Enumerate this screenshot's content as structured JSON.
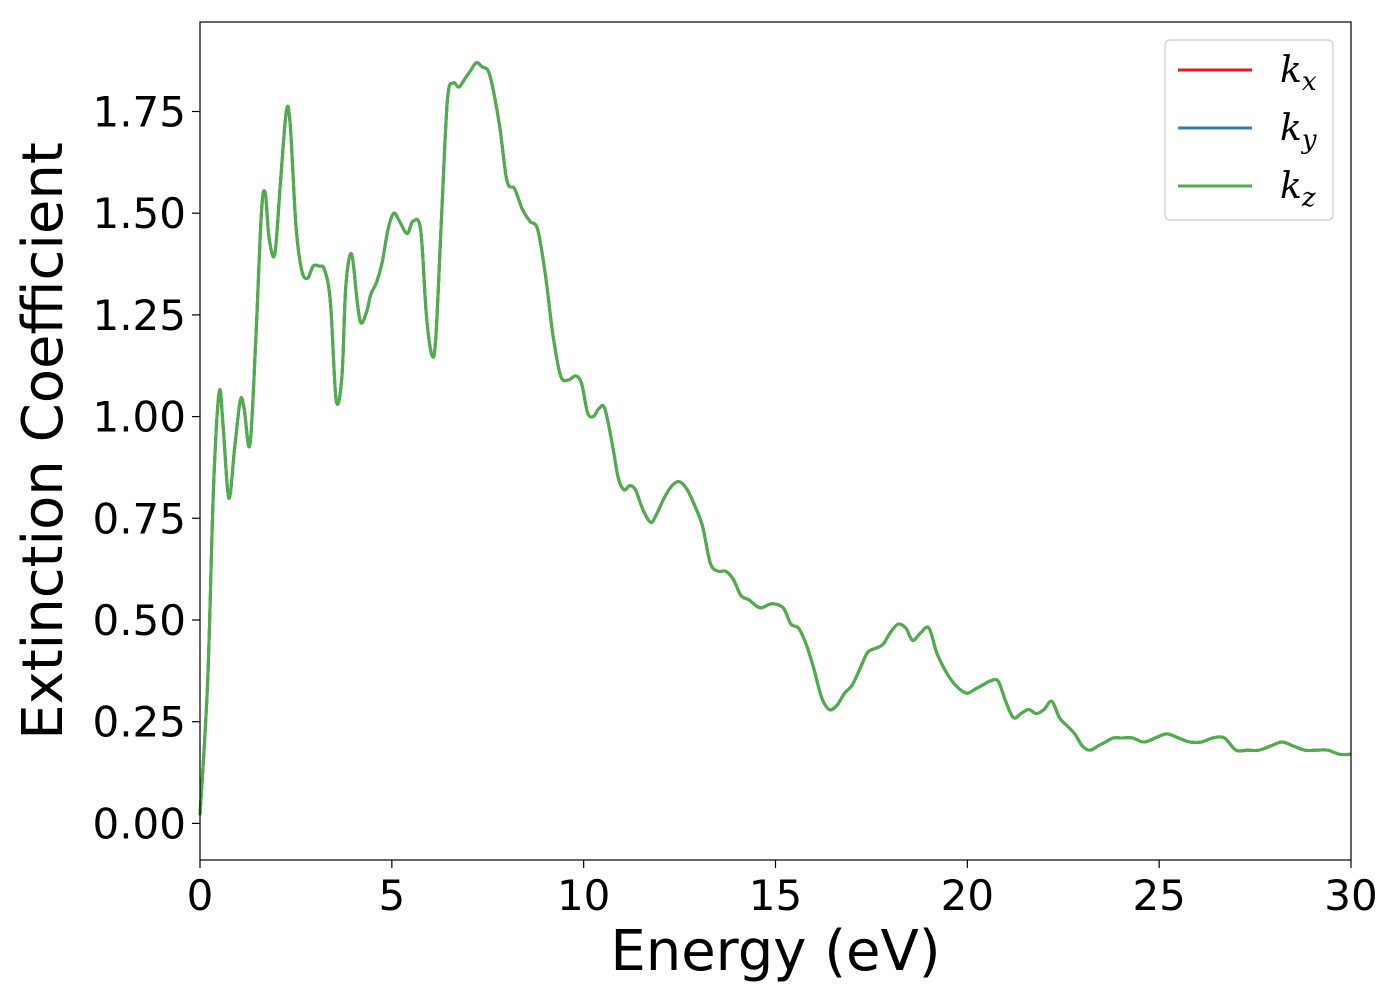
{
  "chart_data": {
    "type": "line",
    "title": "",
    "xlabel": "Energy (eV)",
    "ylabel": "Extinction Coefficient",
    "xlim": [
      0,
      30
    ],
    "ylim": [
      -0.09,
      1.97
    ],
    "xticks": [
      0,
      5,
      10,
      15,
      20,
      25,
      30
    ],
    "xtick_labels": [
      "0",
      "5",
      "10",
      "15",
      "20",
      "25",
      "30"
    ],
    "yticks": [
      0.0,
      0.25,
      0.5,
      0.75,
      1.0,
      1.25,
      1.5,
      1.75
    ],
    "ytick_labels": [
      "0.00",
      "0.25",
      "0.50",
      "0.75",
      "1.00",
      "1.25",
      "1.50",
      "1.75"
    ],
    "grid": false,
    "legend_position": "top-right",
    "x": [
      0,
      0.2,
      0.35,
      0.5,
      0.6,
      0.75,
      0.9,
      1.05,
      1.15,
      1.3,
      1.45,
      1.6,
      1.7,
      1.8,
      1.95,
      2.1,
      2.25,
      2.35,
      2.5,
      2.65,
      2.8,
      2.95,
      3.1,
      3.25,
      3.4,
      3.55,
      3.7,
      3.8,
      3.95,
      4.1,
      4.2,
      4.35,
      4.45,
      4.6,
      4.75,
      4.9,
      5.05,
      5.2,
      5.4,
      5.55,
      5.75,
      5.9,
      6.05,
      6.15,
      6.3,
      6.45,
      6.6,
      6.75,
      6.9,
      7.05,
      7.2,
      7.35,
      7.55,
      7.8,
      8.0,
      8.2,
      8.4,
      8.6,
      8.8,
      9.0,
      9.2,
      9.4,
      9.6,
      9.8,
      9.95,
      10.1,
      10.25,
      10.4,
      10.55,
      10.75,
      10.9,
      11.05,
      11.2,
      11.35,
      11.55,
      11.75,
      11.9,
      12.1,
      12.3,
      12.5,
      12.7,
      12.9,
      13.1,
      13.3,
      13.5,
      13.7,
      13.9,
      14.1,
      14.3,
      14.6,
      14.9,
      15.2,
      15.4,
      15.6,
      15.8,
      16.0,
      16.2,
      16.4,
      16.6,
      16.8,
      17.0,
      17.2,
      17.4,
      17.6,
      17.8,
      18.0,
      18.2,
      18.4,
      18.5,
      18.6,
      18.8,
      19.0,
      19.2,
      19.4,
      19.6,
      19.8,
      20.0,
      20.2,
      20.4,
      20.6,
      20.8,
      21.0,
      21.2,
      21.4,
      21.6,
      21.8,
      22.0,
      22.2,
      22.4,
      22.6,
      22.8,
      23.0,
      23.2,
      23.4,
      23.6,
      23.8,
      24.0,
      24.3,
      24.6,
      24.9,
      25.2,
      25.5,
      25.8,
      26.1,
      26.4,
      26.7,
      27.0,
      27.3,
      27.6,
      27.9,
      28.2,
      28.5,
      28.8,
      29.1,
      29.4,
      29.7,
      30.0
    ],
    "series": [
      {
        "name": "k_x",
        "label_main": "k",
        "label_sub": "x",
        "color": "#e41a1c",
        "values": [
          0.02,
          0.35,
          0.82,
          1.06,
          0.98,
          0.8,
          0.92,
          1.04,
          1.02,
          0.93,
          1.18,
          1.5,
          1.55,
          1.44,
          1.4,
          1.58,
          1.75,
          1.72,
          1.47,
          1.36,
          1.34,
          1.37,
          1.37,
          1.36,
          1.28,
          1.04,
          1.1,
          1.32,
          1.4,
          1.28,
          1.23,
          1.26,
          1.3,
          1.33,
          1.38,
          1.46,
          1.5,
          1.48,
          1.45,
          1.48,
          1.46,
          1.25,
          1.15,
          1.2,
          1.5,
          1.78,
          1.82,
          1.81,
          1.83,
          1.85,
          1.87,
          1.86,
          1.84,
          1.72,
          1.58,
          1.56,
          1.51,
          1.48,
          1.46,
          1.35,
          1.2,
          1.1,
          1.09,
          1.1,
          1.08,
          1.01,
          1.0,
          1.02,
          1.02,
          0.93,
          0.85,
          0.82,
          0.83,
          0.82,
          0.77,
          0.74,
          0.76,
          0.8,
          0.83,
          0.84,
          0.82,
          0.78,
          0.73,
          0.64,
          0.62,
          0.62,
          0.6,
          0.56,
          0.55,
          0.53,
          0.54,
          0.53,
          0.49,
          0.48,
          0.44,
          0.38,
          0.31,
          0.28,
          0.29,
          0.32,
          0.34,
          0.38,
          0.42,
          0.43,
          0.44,
          0.47,
          0.49,
          0.48,
          0.46,
          0.45,
          0.47,
          0.48,
          0.42,
          0.38,
          0.35,
          0.33,
          0.32,
          0.33,
          0.34,
          0.35,
          0.35,
          0.3,
          0.26,
          0.27,
          0.28,
          0.27,
          0.28,
          0.3,
          0.26,
          0.24,
          0.22,
          0.19,
          0.18,
          0.19,
          0.2,
          0.21,
          0.21,
          0.21,
          0.2,
          0.21,
          0.22,
          0.21,
          0.2,
          0.2,
          0.21,
          0.21,
          0.18,
          0.18,
          0.18,
          0.19,
          0.2,
          0.19,
          0.18,
          0.18,
          0.18,
          0.17,
          0.17
        ]
      },
      {
        "name": "k_y",
        "label_main": "k",
        "label_sub": "y",
        "color": "#377eb8",
        "values": [
          0.02,
          0.35,
          0.82,
          1.06,
          0.98,
          0.8,
          0.92,
          1.04,
          1.02,
          0.93,
          1.18,
          1.5,
          1.55,
          1.44,
          1.4,
          1.58,
          1.75,
          1.72,
          1.47,
          1.36,
          1.34,
          1.37,
          1.37,
          1.36,
          1.28,
          1.04,
          1.1,
          1.32,
          1.4,
          1.28,
          1.23,
          1.26,
          1.3,
          1.33,
          1.38,
          1.46,
          1.5,
          1.48,
          1.45,
          1.48,
          1.46,
          1.25,
          1.15,
          1.2,
          1.5,
          1.78,
          1.82,
          1.81,
          1.83,
          1.85,
          1.87,
          1.86,
          1.84,
          1.72,
          1.58,
          1.56,
          1.51,
          1.48,
          1.46,
          1.35,
          1.2,
          1.1,
          1.09,
          1.1,
          1.08,
          1.01,
          1.0,
          1.02,
          1.02,
          0.93,
          0.85,
          0.82,
          0.83,
          0.82,
          0.77,
          0.74,
          0.76,
          0.8,
          0.83,
          0.84,
          0.82,
          0.78,
          0.73,
          0.64,
          0.62,
          0.62,
          0.6,
          0.56,
          0.55,
          0.53,
          0.54,
          0.53,
          0.49,
          0.48,
          0.44,
          0.38,
          0.31,
          0.28,
          0.29,
          0.32,
          0.34,
          0.38,
          0.42,
          0.43,
          0.44,
          0.47,
          0.49,
          0.48,
          0.46,
          0.45,
          0.47,
          0.48,
          0.42,
          0.38,
          0.35,
          0.33,
          0.32,
          0.33,
          0.34,
          0.35,
          0.35,
          0.3,
          0.26,
          0.27,
          0.28,
          0.27,
          0.28,
          0.3,
          0.26,
          0.24,
          0.22,
          0.19,
          0.18,
          0.19,
          0.2,
          0.21,
          0.21,
          0.21,
          0.2,
          0.21,
          0.22,
          0.21,
          0.2,
          0.2,
          0.21,
          0.21,
          0.18,
          0.18,
          0.18,
          0.19,
          0.2,
          0.19,
          0.18,
          0.18,
          0.18,
          0.17,
          0.17
        ]
      },
      {
        "name": "k_z",
        "label_main": "k",
        "label_sub": "z",
        "color": "#4daf4a",
        "values": [
          0.02,
          0.35,
          0.82,
          1.06,
          0.98,
          0.8,
          0.92,
          1.04,
          1.02,
          0.93,
          1.18,
          1.5,
          1.55,
          1.44,
          1.4,
          1.58,
          1.75,
          1.72,
          1.47,
          1.36,
          1.34,
          1.37,
          1.37,
          1.36,
          1.28,
          1.04,
          1.1,
          1.32,
          1.4,
          1.28,
          1.23,
          1.26,
          1.3,
          1.33,
          1.38,
          1.46,
          1.5,
          1.48,
          1.45,
          1.48,
          1.46,
          1.25,
          1.15,
          1.2,
          1.5,
          1.78,
          1.82,
          1.81,
          1.83,
          1.85,
          1.87,
          1.86,
          1.84,
          1.72,
          1.58,
          1.56,
          1.51,
          1.48,
          1.46,
          1.35,
          1.2,
          1.1,
          1.09,
          1.1,
          1.08,
          1.01,
          1.0,
          1.02,
          1.02,
          0.93,
          0.85,
          0.82,
          0.83,
          0.82,
          0.77,
          0.74,
          0.76,
          0.8,
          0.83,
          0.84,
          0.82,
          0.78,
          0.73,
          0.64,
          0.62,
          0.62,
          0.6,
          0.56,
          0.55,
          0.53,
          0.54,
          0.53,
          0.49,
          0.48,
          0.44,
          0.38,
          0.31,
          0.28,
          0.29,
          0.32,
          0.34,
          0.38,
          0.42,
          0.43,
          0.44,
          0.47,
          0.49,
          0.48,
          0.46,
          0.45,
          0.47,
          0.48,
          0.42,
          0.38,
          0.35,
          0.33,
          0.32,
          0.33,
          0.34,
          0.35,
          0.35,
          0.3,
          0.26,
          0.27,
          0.28,
          0.27,
          0.28,
          0.3,
          0.26,
          0.24,
          0.22,
          0.19,
          0.18,
          0.19,
          0.2,
          0.21,
          0.21,
          0.21,
          0.2,
          0.21,
          0.22,
          0.21,
          0.2,
          0.2,
          0.21,
          0.21,
          0.18,
          0.18,
          0.18,
          0.19,
          0.2,
          0.19,
          0.18,
          0.18,
          0.18,
          0.17,
          0.17
        ]
      }
    ]
  }
}
